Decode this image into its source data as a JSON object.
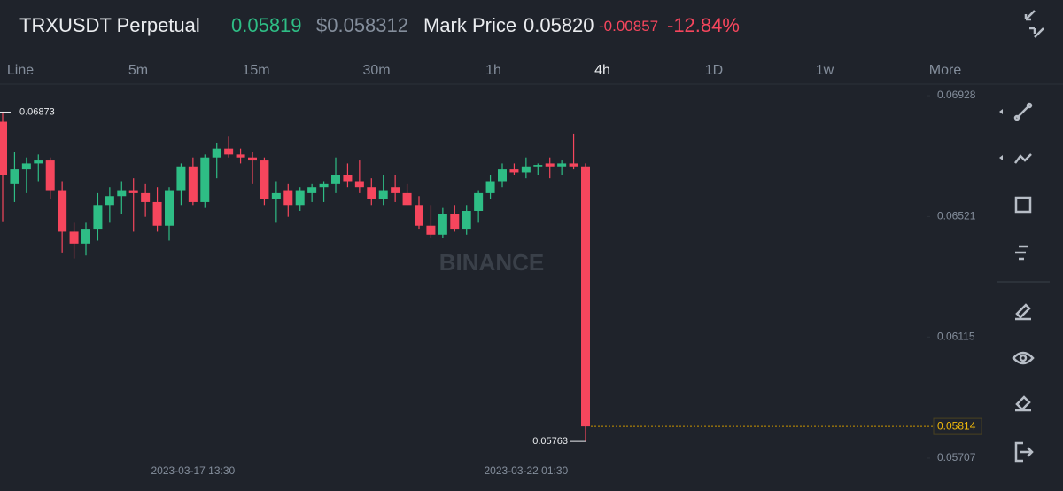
{
  "header": {
    "symbol": "TRXUSDT Perpetual",
    "last": "0.05819",
    "usd": "$0.058312",
    "mark_label": "Mark Price",
    "mark": "0.05820",
    "change": "-0.00857",
    "change_pct": "-12.84%"
  },
  "tabs": [
    "Line",
    "5m",
    "15m",
    "30m",
    "1h",
    "4h",
    "1D",
    "1w",
    "More"
  ],
  "watermark": "BINANCE",
  "chart_data": {
    "type": "candlestick",
    "up_color": "#2ebd85",
    "down_color": "#f6465d",
    "grid": false,
    "categories": [
      null,
      null,
      null,
      null,
      null,
      null,
      null,
      null,
      null,
      null,
      null,
      null,
      null,
      null,
      null,
      null,
      "2023-03-17 13:30",
      null,
      null,
      null,
      null,
      null,
      null,
      null,
      null,
      null,
      null,
      null,
      null,
      null,
      null,
      null,
      null,
      null,
      null,
      null,
      null,
      null,
      null,
      null,
      null,
      null,
      null,
      null,
      "2023-03-22 01:30",
      null,
      null,
      null,
      null,
      null
    ],
    "open": [
      0.0684,
      0.0663,
      0.0668,
      0.067,
      0.0671,
      0.0661,
      0.0647,
      0.0643,
      0.0648,
      0.0656,
      0.0659,
      0.0661,
      0.066,
      0.0657,
      0.0649,
      0.0661,
      0.0669,
      0.0657,
      0.0672,
      0.0675,
      0.0673,
      0.0672,
      0.0671,
      0.0658,
      0.0661,
      0.0656,
      0.066,
      0.0662,
      0.0663,
      0.0666,
      0.0664,
      0.0662,
      0.0658,
      0.0662,
      0.066,
      0.0656,
      0.0649,
      0.0646,
      0.0653,
      0.0648,
      0.0654,
      0.066,
      0.0664,
      0.0668,
      0.0667,
      0.0669,
      0.067,
      0.0669,
      0.067,
      0.0669
    ],
    "high": [
      0.06873,
      0.0674,
      0.0672,
      0.0673,
      0.0672,
      0.0664,
      0.065,
      0.065,
      0.066,
      0.0662,
      0.0664,
      0.0665,
      0.0663,
      0.0662,
      0.0662,
      0.067,
      0.0672,
      0.0673,
      0.0677,
      0.0679,
      0.0675,
      0.0674,
      0.0672,
      0.0664,
      0.0663,
      0.0662,
      0.0663,
      0.0664,
      0.0672,
      0.067,
      0.0671,
      0.0665,
      0.0666,
      0.0666,
      0.0663,
      0.0659,
      0.0656,
      0.0655,
      0.0656,
      0.0656,
      0.0661,
      0.0666,
      0.067,
      0.067,
      0.0672,
      0.067,
      0.0672,
      0.0671,
      0.068,
      0.067
    ],
    "low": [
      0.06505,
      0.0657,
      0.066,
      0.0664,
      0.0658,
      0.064,
      0.0638,
      0.0639,
      0.0644,
      0.065,
      0.0653,
      0.0647,
      0.0652,
      0.0647,
      0.0644,
      0.0656,
      0.0656,
      0.0655,
      0.0665,
      0.0672,
      0.067,
      0.0663,
      0.0656,
      0.065,
      0.0652,
      0.0654,
      0.0657,
      0.0657,
      0.066,
      0.0662,
      0.066,
      0.0656,
      0.0656,
      0.0657,
      0.0656,
      0.0648,
      0.0645,
      0.0645,
      0.0647,
      0.0646,
      0.065,
      0.0658,
      0.0662,
      0.0666,
      0.0665,
      0.0666,
      0.0665,
      0.0666,
      0.0668,
      0.05763
    ],
    "close": [
      0.0666,
      0.0668,
      0.067,
      0.0671,
      0.0661,
      0.0647,
      0.0643,
      0.0648,
      0.0656,
      0.0659,
      0.0661,
      0.066,
      0.0657,
      0.0649,
      0.0661,
      0.0669,
      0.0657,
      0.0672,
      0.0675,
      0.0673,
      0.0672,
      0.0671,
      0.0658,
      0.066,
      0.0656,
      0.0661,
      0.0662,
      0.0663,
      0.0666,
      0.0664,
      0.0662,
      0.0658,
      0.0661,
      0.066,
      0.0656,
      0.0649,
      0.0646,
      0.0653,
      0.0648,
      0.0654,
      0.066,
      0.0664,
      0.0668,
      0.0667,
      0.0669,
      0.06695,
      0.0669,
      0.067,
      0.0669,
      0.05814
    ],
    "ylim": [
      0.05668,
      0.06967
    ],
    "yticks": [
      0.06928,
      0.06521,
      0.06115,
      0.05707
    ]
  }
}
